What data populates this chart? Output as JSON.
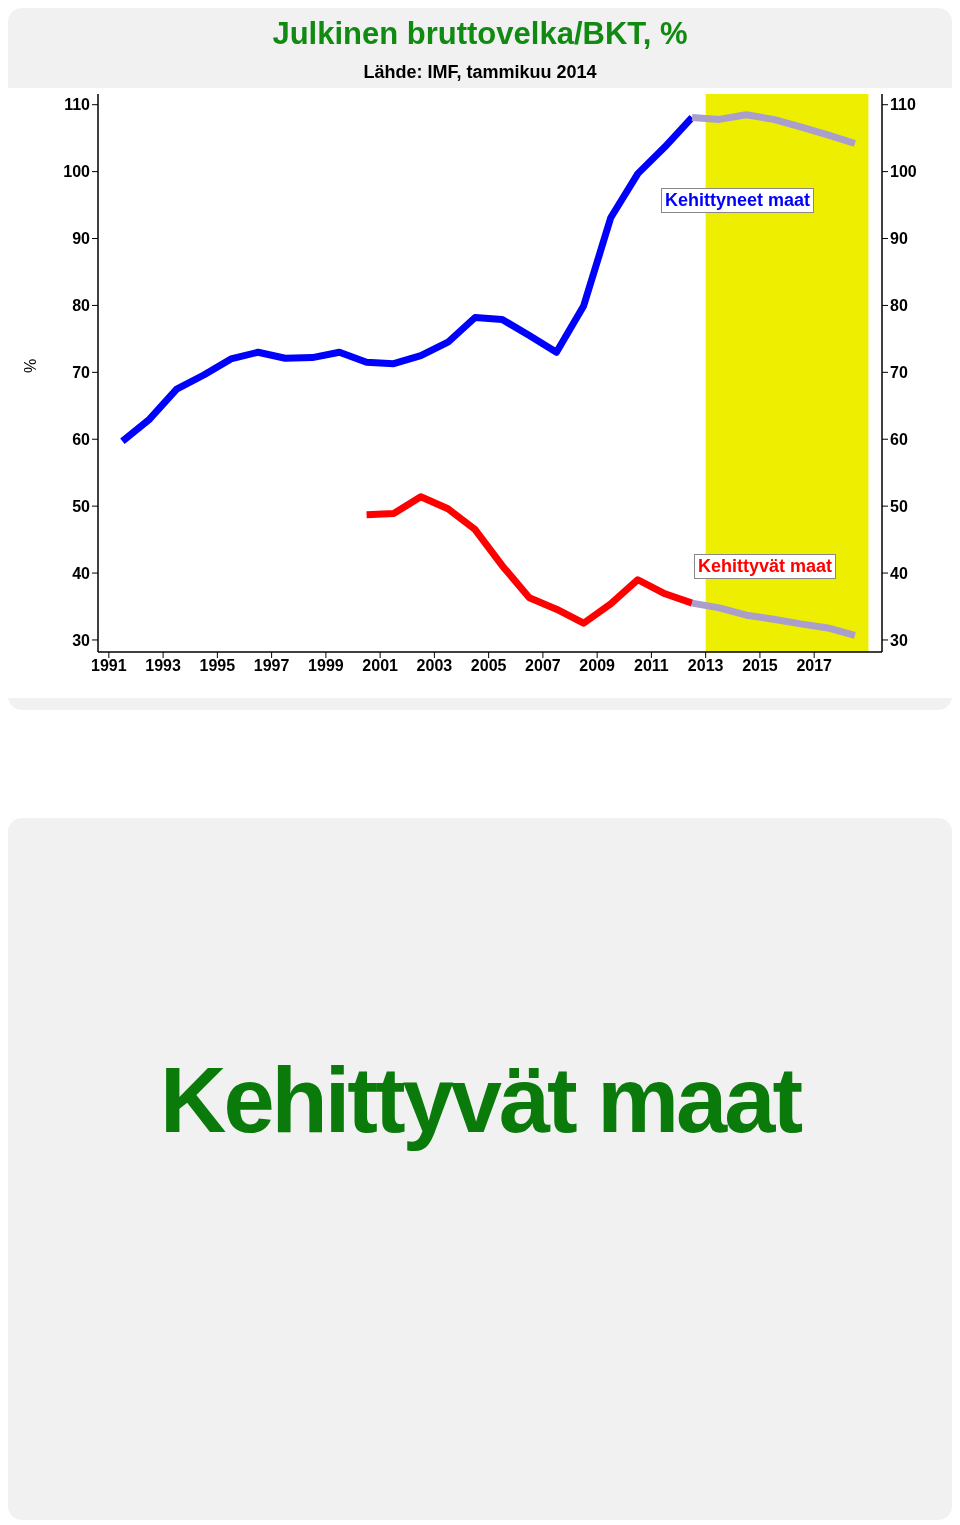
{
  "chart_data": {
    "type": "line",
    "title": "Julkinen bruttovelka/BKT, %",
    "subtitle": "Lähde: IMF, tammikuu 2014",
    "ylabel": "%",
    "xlim": [
      1990.6,
      2019.5
    ],
    "xticks": [
      1991,
      1993,
      1995,
      1997,
      1999,
      2001,
      2003,
      2005,
      2007,
      2009,
      2011,
      2013,
      2015,
      2017
    ],
    "ylim": [
      28.2,
      111.6
    ],
    "yticks": [
      30,
      40,
      50,
      60,
      70,
      80,
      90,
      100,
      110
    ],
    "y2lim": [
      28.2,
      111.6
    ],
    "y2ticks": [
      30,
      40,
      50,
      60,
      70,
      80,
      90,
      100,
      110
    ],
    "marker": "none",
    "line_style": "solid",
    "bands": [
      {
        "axis": "x",
        "from": 2013,
        "to": 2019,
        "color": "#eeee00"
      }
    ],
    "series": [
      {
        "name": "Kehittyneet maat",
        "color": "#0000ff",
        "x": [
          1991.5,
          1992.5,
          1993.5,
          1994.5,
          1995.5,
          1996.5,
          1997.5,
          1998.5,
          1999.5,
          2000.5,
          2001.5,
          2002.5,
          2003.5,
          2004.5,
          2005.5,
          2006.5,
          2007.5,
          2008.5,
          2009.5,
          2010.5,
          2011.5,
          2012.5
        ],
        "values": [
          59.7,
          63.0,
          67.5,
          69.6,
          72.0,
          73.0,
          72.1,
          72.2,
          73.0,
          71.5,
          71.3,
          72.5,
          74.5,
          78.2,
          77.9,
          75.5,
          73.0,
          79.9,
          93.1,
          99.7,
          103.7,
          108.1
        ]
      },
      {
        "color": "#aa9ecb",
        "x": [
          2012.5,
          2013.5,
          2014.5,
          2015.5,
          2016.5,
          2017.5,
          2018.5
        ],
        "values": [
          108.1,
          107.8,
          108.5,
          107.8,
          106.7,
          105.5,
          104.2
        ]
      },
      {
        "name": "Kehittyvät maat",
        "color": "#ff0000",
        "x": [
          2000.5,
          2001.5,
          2002.5,
          2003.5,
          2004.5,
          2005.5,
          2006.5,
          2007.5,
          2008.5,
          2009.5,
          2010.5,
          2011.5,
          2012.5
        ],
        "values": [
          48.7,
          48.9,
          51.4,
          49.6,
          46.5,
          41.1,
          36.3,
          34.6,
          32.5,
          35.4,
          39.0,
          36.9,
          35.5
        ]
      },
      {
        "color": "#aa9ecb",
        "x": [
          2012.5,
          2013.5,
          2014.5,
          2015.5,
          2016.5,
          2017.5,
          2018.5
        ],
        "values": [
          35.5,
          34.8,
          33.7,
          33.1,
          32.4,
          31.8,
          30.7
        ]
      }
    ],
    "annotations": [
      "Kehittyvät maat"
    ]
  }
}
